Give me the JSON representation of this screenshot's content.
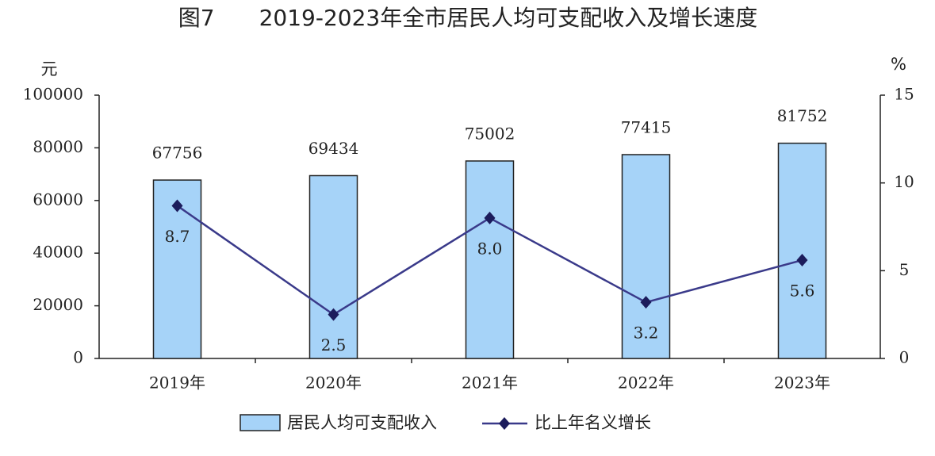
{
  "chart_data": {
    "type": "bar-line",
    "title": "图7　　2019-2023年全市居民人均可支配收入及增长速度",
    "y_label": "元",
    "y2_label": "%",
    "categories": [
      "2019年",
      "2020年",
      "2021年",
      "2022年",
      "2023年"
    ],
    "series": [
      {
        "name": "居民人均可支配收入",
        "type": "bar",
        "color": "#a6d3f8",
        "values": [
          67756,
          69434,
          75002,
          77415,
          81752
        ]
      },
      {
        "name": "比上年名义增长",
        "type": "line",
        "axis": "y2",
        "color": "#3a3a8a",
        "values": [
          8.7,
          2.5,
          8.0,
          3.2,
          5.6
        ],
        "value_labels": [
          "8.7",
          "2.5",
          "8.0",
          "3.2",
          "5.6"
        ]
      }
    ],
    "ylim": [
      0,
      100000
    ],
    "yticks": [
      0,
      20000,
      40000,
      60000,
      80000,
      100000
    ],
    "y2lim": [
      0,
      15
    ],
    "y2ticks": [
      0,
      5,
      10,
      15
    ]
  }
}
